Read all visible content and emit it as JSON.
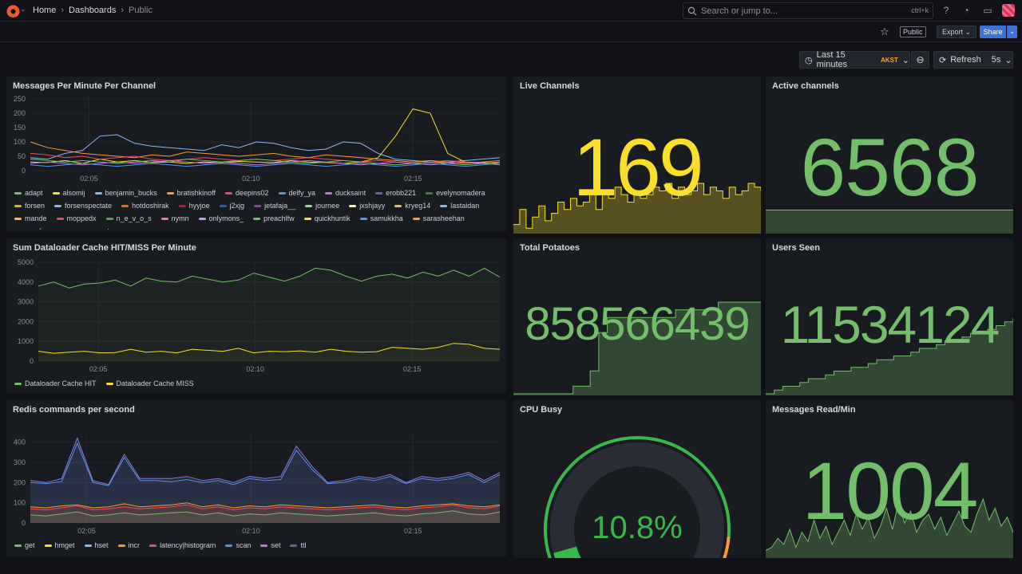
{
  "topbar": {
    "breadcrumb": [
      "Home",
      "Dashboards",
      "Public"
    ],
    "search_placeholder": "Search or jump to...",
    "search_shortcut": "ctrl+k",
    "icons": [
      "help-icon",
      "rss-icon",
      "kiosk-icon",
      "avatar"
    ]
  },
  "subbar": {
    "public_label": "Public",
    "export_label": "Export",
    "share_label": "Share"
  },
  "timepicker": {
    "range_label": "Last 15 minutes",
    "timezone": "AKST",
    "refresh_label": "Refresh",
    "interval": "5s"
  },
  "colors": {
    "green": "#73bf69",
    "yellow": "#fade2a",
    "blue": "#8ab8ff",
    "orange": "#ff9830",
    "red": "#f2495c",
    "purple": "#a352cc"
  },
  "panels": {
    "messages": {
      "title": "Messages Per Minute Per Channel",
      "legend": [
        {
          "name": "adapt",
          "color": "#73bf69"
        },
        {
          "name": "alsomij",
          "color": "#fade2a"
        },
        {
          "name": "benjamin_bucks",
          "color": "#8ab8ff"
        },
        {
          "name": "bratishkinoff",
          "color": "#ff9830"
        },
        {
          "name": "deepins02",
          "color": "#f2495c"
        },
        {
          "name": "delfy_ya",
          "color": "#5794f2"
        },
        {
          "name": "ducksaint",
          "color": "#b877d9"
        },
        {
          "name": "erobb221",
          "color": "#705da0"
        },
        {
          "name": "evelynomadera",
          "color": "#37872d"
        },
        {
          "name": "forsen",
          "color": "#e0b400"
        },
        {
          "name": "forsenspectate",
          "color": "#8ab8ff"
        },
        {
          "name": "hotdoshirak",
          "color": "#fa6400"
        },
        {
          "name": "hyyjoe",
          "color": "#c4162a"
        },
        {
          "name": "j2xjg",
          "color": "#1f60c4"
        },
        {
          "name": "jetafaja__",
          "color": "#8f3bb8"
        },
        {
          "name": "journee",
          "color": "#96d98d"
        },
        {
          "name": "jxshjayy",
          "color": "#fff899"
        },
        {
          "name": "kryeg14",
          "color": "#ffb357"
        },
        {
          "name": "lastaidan",
          "color": "#8ab8ff"
        },
        {
          "name": "mande",
          "color": "#ffb357"
        },
        {
          "name": "moppedx",
          "color": "#f2495c"
        },
        {
          "name": "n_e_v_o_s",
          "color": "#56a64b"
        },
        {
          "name": "nymn",
          "color": "#ff7383"
        },
        {
          "name": "onlymons_",
          "color": "#ca95e5"
        },
        {
          "name": "preachlfw",
          "color": "#73bf69"
        },
        {
          "name": "quickhuntik",
          "color": "#fade2a"
        },
        {
          "name": "samukkha",
          "color": "#5794f2"
        },
        {
          "name": "sarasheehan",
          "color": "#ff9830"
        },
        {
          "name": "smrrfy",
          "color": "#c4162a"
        },
        {
          "name": "space",
          "color": "#3274d9"
        },
        {
          "name": "stanyyy",
          "color": "#a352cc"
        }
      ],
      "chart_data": {
        "type": "line",
        "y_ticks": [
          "250",
          "200",
          "150",
          "100",
          "50",
          "0"
        ],
        "x_ticks": [
          "02:05",
          "02:10",
          "02:15"
        ],
        "ylim": [
          0,
          250
        ],
        "series": [
          {
            "color": "#fade2a",
            "values": [
              30,
              28,
              35,
              25,
              40,
              30,
              35,
              28,
              30,
              25,
              30,
              28,
              32,
              30,
              28,
              35,
              30,
              28,
              25,
              30,
              45,
              120,
              215,
              200,
              60,
              30,
              28,
              25
            ]
          },
          {
            "color": "#8ab8ff",
            "values": [
              45,
              40,
              60,
              70,
              120,
              125,
              95,
              85,
              80,
              75,
              70,
              90,
              80,
              100,
              95,
              80,
              70,
              75,
              100,
              95,
              60,
              40,
              35,
              30,
              30,
              35,
              40,
              45
            ]
          },
          {
            "color": "#ff9830",
            "values": [
              100,
              80,
              70,
              60,
              55,
              50,
              45,
              55,
              50,
              65,
              60,
              55,
              50,
              55,
              60,
              50,
              45,
              55,
              50,
              45,
              40,
              35,
              30,
              35,
              30,
              25,
              30,
              35
            ]
          },
          {
            "color": "#f2495c",
            "values": [
              60,
              55,
              45,
              50,
              40,
              45,
              50,
              40,
              35,
              40,
              45,
              40,
              35,
              40,
              35,
              40,
              45,
              40,
              35,
              30,
              35,
              30,
              25,
              30,
              35,
              30,
              25,
              30
            ]
          },
          {
            "color": "#73bf69",
            "values": [
              40,
              35,
              30,
              35,
              30,
              25,
              30,
              35,
              30,
              40,
              35,
              30,
              35,
              40,
              35,
              30,
              25,
              30,
              35,
              30,
              25,
              20,
              25,
              30,
              25,
              20,
              25,
              30
            ]
          },
          {
            "color": "#b877d9",
            "values": [
              25,
              30,
              25,
              20,
              25,
              30,
              25,
              30,
              35,
              30,
              25,
              30,
              25,
              20,
              25,
              30,
              35,
              30,
              25,
              20,
              25,
              30,
              25,
              20,
              25,
              30,
              25,
              20
            ]
          },
          {
            "color": "#5794f2",
            "values": [
              20,
              15,
              20,
              25,
              20,
              15,
              20,
              25,
              20,
              15,
              20,
              25,
              20,
              15,
              20,
              25,
              20,
              15,
              20,
              25,
              20,
              15,
              20,
              25,
              20,
              15,
              20,
              25
            ]
          }
        ]
      }
    },
    "live": {
      "title": "Live Channels",
      "value": "169",
      "color": "#fade2a",
      "spark": [
        2,
        6,
        1,
        4,
        7,
        3,
        5,
        8,
        6,
        9,
        7,
        8,
        10,
        6,
        11,
        9,
        12,
        10,
        8,
        11,
        9,
        10,
        12,
        11,
        13,
        9,
        12,
        10,
        11,
        13,
        10,
        12,
        11,
        9,
        12,
        10,
        11,
        13,
        12,
        11
      ]
    },
    "active": {
      "title": "Active channels",
      "value": "6568",
      "color": "#73bf69",
      "spark": [
        5,
        5,
        5,
        5,
        5,
        5,
        5,
        5,
        5,
        5,
        5,
        5,
        5,
        5,
        5,
        5,
        5,
        5,
        5,
        5
      ]
    },
    "dataloader": {
      "title": "Sum Dataloader Cache HIT/MISS Per Minute",
      "legend": [
        {
          "name": "Dataloader Cache HIT",
          "color": "#73bf69"
        },
        {
          "name": "Dataloader Cache MISS",
          "color": "#fade2a"
        }
      ],
      "chart_data": {
        "type": "line",
        "y_ticks": [
          "5000",
          "4000",
          "3000",
          "2000",
          "1000",
          "0"
        ],
        "x_ticks": [
          "02:05",
          "02:10",
          "02:15"
        ],
        "ylim": [
          0,
          5000
        ],
        "series": [
          {
            "color": "#73bf69",
            "values": [
              3800,
              4000,
              3700,
              3900,
              3950,
              4100,
              3800,
              4200,
              4050,
              4000,
              4300,
              4150,
              4000,
              4100,
              4450,
              4250,
              4050,
              4300,
              4700,
              4600,
              4300,
              4050,
              4300,
              4400,
              4200,
              4500,
              4300,
              4600,
              4300,
              4700,
              4250
            ]
          },
          {
            "color": "#fade2a",
            "values": [
              500,
              400,
              450,
              500,
              420,
              430,
              600,
              450,
              500,
              420,
              600,
              550,
              500,
              650,
              420,
              500,
              480,
              520,
              450,
              600,
              500,
              450,
              480,
              700,
              650,
              600,
              700,
              900,
              850,
              650,
              600
            ]
          }
        ]
      }
    },
    "potatoes": {
      "title": "Total Potatoes",
      "value": "858566439",
      "color": "#73bf69",
      "spark": [
        0,
        0,
        0,
        0,
        0,
        0,
        0,
        1,
        1,
        3,
        8,
        10,
        10,
        10,
        10,
        10,
        10,
        10,
        10,
        11,
        11,
        11,
        11,
        11,
        12,
        12,
        12,
        12,
        12,
        12
      ]
    },
    "users": {
      "title": "Users Seen",
      "value": "11534124",
      "color": "#73bf69",
      "spark": [
        0,
        1,
        2,
        2,
        3,
        4,
        4,
        5,
        6,
        6,
        7,
        7,
        8,
        9,
        9,
        10,
        10,
        11,
        12,
        12,
        13,
        14,
        14,
        15,
        16,
        16,
        17,
        18,
        19,
        20
      ]
    },
    "redis": {
      "title": "Redis commands per second",
      "legend": [
        {
          "name": "get",
          "color": "#73bf69"
        },
        {
          "name": "hmget",
          "color": "#fade2a"
        },
        {
          "name": "hset",
          "color": "#8ab8ff"
        },
        {
          "name": "incr",
          "color": "#ff9830"
        },
        {
          "name": "latency|histogram",
          "color": "#f2495c"
        },
        {
          "name": "scan",
          "color": "#5794f2"
        },
        {
          "name": "set",
          "color": "#b877d9"
        },
        {
          "name": "ttl",
          "color": "#705da0"
        }
      ],
      "chart_data": {
        "type": "area",
        "y_ticks": [
          "400",
          "300",
          "200",
          "100",
          "0"
        ],
        "x_ticks": [
          "02:05",
          "02:10",
          "02:15"
        ],
        "ylim": [
          0,
          450
        ],
        "series": [
          {
            "color": "#8b7bd8",
            "values": [
              210,
              200,
              220,
              420,
              210,
              190,
              340,
              220,
              220,
              220,
              230,
              210,
              220,
              200,
              230,
              220,
              230,
              380,
              280,
              200,
              210,
              230,
              220,
              240,
              200,
              230,
              220,
              230,
              250,
              210,
              250
            ]
          },
          {
            "color": "#5794f2",
            "values": [
              200,
              195,
              205,
              395,
              200,
              185,
              325,
              210,
              210,
              205,
              215,
              200,
              210,
              190,
              220,
              210,
              215,
              360,
              265,
              195,
              200,
              220,
              210,
              230,
              195,
              220,
              210,
              220,
              240,
              200,
              240
            ]
          },
          {
            "color": "#ff9830",
            "values": [
              80,
              75,
              85,
              90,
              75,
              80,
              95,
              80,
              85,
              90,
              100,
              80,
              90,
              75,
              85,
              80,
              90,
              85,
              80,
              75,
              80,
              85,
              90,
              80,
              75,
              85,
              90,
              95,
              85,
              80,
              90
            ]
          },
          {
            "color": "#f2495c",
            "values": [
              70,
              65,
              75,
              85,
              65,
              70,
              80,
              70,
              75,
              80,
              90,
              70,
              80,
              65,
              75,
              70,
              80,
              75,
              70,
              65,
              70,
              75,
              80,
              70,
              65,
              75,
              80,
              90,
              75,
              70,
              85
            ]
          },
          {
            "color": "#73bf69",
            "values": [
              40,
              35,
              45,
              55,
              35,
              40,
              50,
              40,
              45,
              50,
              55,
              40,
              50,
              35,
              45,
              40,
              50,
              45,
              40,
              35,
              40,
              45,
              50,
              40,
              35,
              45,
              50,
              60,
              45,
              40,
              55
            ]
          }
        ]
      }
    },
    "cpu": {
      "title": "CPU Busy",
      "value": "10.8%",
      "percent": 10.8,
      "color": "#37b94a"
    },
    "readmin": {
      "title": "Messages Read/Min",
      "value": "1004",
      "color": "#73bf69",
      "spark": [
        2,
        3,
        6,
        4,
        9,
        3,
        8,
        5,
        12,
        6,
        10,
        4,
        8,
        12,
        7,
        14,
        9,
        13,
        6,
        10,
        16,
        9,
        18,
        11,
        15,
        8,
        12,
        14,
        9,
        13,
        7,
        11,
        15,
        10,
        8,
        14,
        19,
        12,
        16,
        10,
        13,
        8
      ]
    }
  }
}
